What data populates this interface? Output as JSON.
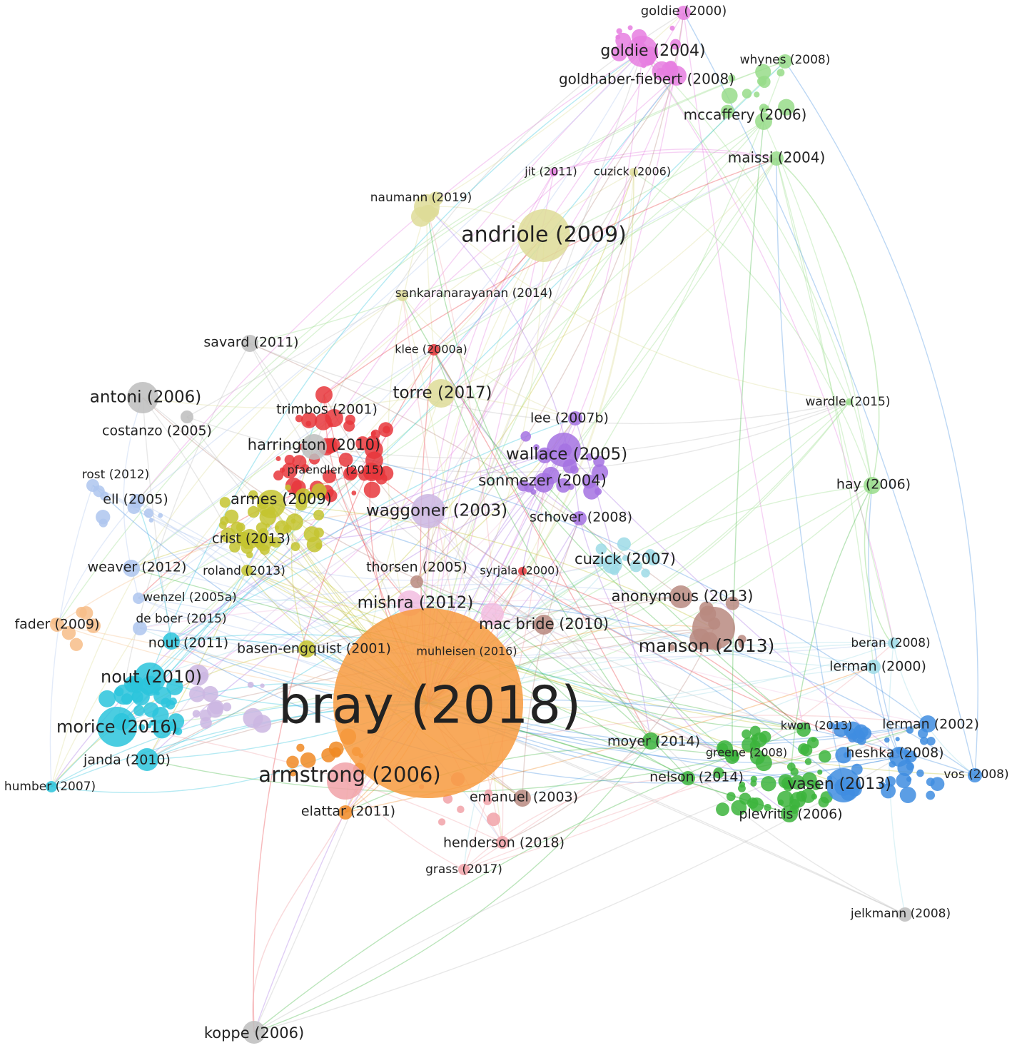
{
  "nodes": [
    {
      "label": "goldie (2000)"
    },
    {
      "label": "goldie (2004)"
    },
    {
      "label": "whynes (2008)"
    },
    {
      "label": "goldhaber-fiebert (2008)"
    },
    {
      "label": "mccaffery (2006)"
    },
    {
      "label": "maissi (2004)"
    },
    {
      "label": "jit (2011)"
    },
    {
      "label": "cuzick (2006)"
    },
    {
      "label": "naumann (2019)"
    },
    {
      "label": "andriole (2009)"
    },
    {
      "label": "sankaranarayanan (2014)"
    },
    {
      "label": "savard (2011)"
    },
    {
      "label": "klee (2000a)"
    },
    {
      "label": "antoni (2006)"
    },
    {
      "label": "torre (2017)"
    },
    {
      "label": "wardle (2015)"
    },
    {
      "label": "lee (2007b)"
    },
    {
      "label": "costanzo (2005)"
    },
    {
      "label": "trimbos (2001)"
    },
    {
      "label": "harrington (2010)"
    },
    {
      "label": "wallace (2005)"
    },
    {
      "label": "rost (2012)"
    },
    {
      "label": "pfaendler (2015)"
    },
    {
      "label": "sonmezer (2004)"
    },
    {
      "label": "hay (2006)"
    },
    {
      "label": "ell (2005)"
    },
    {
      "label": "armes (2009)"
    },
    {
      "label": "waggoner (2003)"
    },
    {
      "label": "schover (2008)"
    },
    {
      "label": "crist (2013)"
    },
    {
      "label": "cuzick (2007)"
    },
    {
      "label": "weaver (2012)"
    },
    {
      "label": "thorsen (2005)"
    },
    {
      "label": "syrjala (2000)"
    },
    {
      "label": "roland (2013)"
    },
    {
      "label": "anonymous (2013)"
    },
    {
      "label": "wenzel (2005a)"
    },
    {
      "label": "mishra (2012)"
    },
    {
      "label": "de boer (2015)"
    },
    {
      "label": "fader (2009)"
    },
    {
      "label": "mac bride (2010)"
    },
    {
      "label": "basen-engquist (2001)"
    },
    {
      "label": "manson (2013)"
    },
    {
      "label": "beran (2008)"
    },
    {
      "label": "muhleisen (2016)"
    },
    {
      "label": "nout (2011)"
    },
    {
      "label": "lerman (2000)"
    },
    {
      "label": "nout (2010)"
    },
    {
      "label": "bray (2018)"
    },
    {
      "label": "morice (2016)"
    },
    {
      "label": "lerman (2002)"
    },
    {
      "label": "kwon (2013)"
    },
    {
      "label": "moyer (2014)"
    },
    {
      "label": "greene (2008)"
    },
    {
      "label": "heshka (2008)"
    },
    {
      "label": "janda (2010)"
    },
    {
      "label": "armstrong (2006)"
    },
    {
      "label": "nelson (2014)"
    },
    {
      "label": "vos (2008)"
    },
    {
      "label": "vasen (2013)"
    },
    {
      "label": "humber (2007)"
    },
    {
      "label": "emanuel (2003)"
    },
    {
      "label": "elattar (2011)"
    },
    {
      "label": "plevritis (2006)"
    },
    {
      "label": "henderson (2018)"
    },
    {
      "label": "grass (2017)"
    },
    {
      "label": "jelkmann (2008)"
    },
    {
      "label": "koppe (2006)"
    }
  ]
}
